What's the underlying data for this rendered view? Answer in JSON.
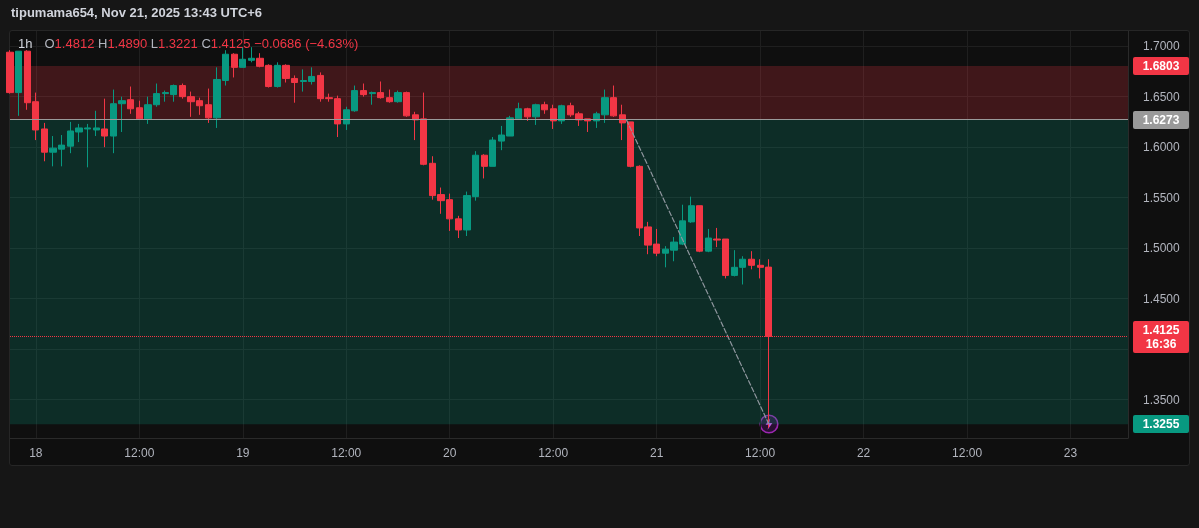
{
  "chart_data": {
    "type": "candlestick",
    "title": "1h",
    "subtitle": "O1.4812 H1.4890 L1.3221 C1.4125 −0.0686 (−4.63%)",
    "annotations": [
      "tipumama654, Nov 21, 2025 13:43 UTC+6"
    ],
    "series": [
      {
        "x": [
          "2025-11-17T21:00",
          "2025-11-17T22:00",
          "2025-11-17T23:00",
          "2025-11-18T00:00",
          "2025-11-18T01:00",
          "2025-11-18T02:00",
          "2025-11-18T03:00",
          "2025-11-18T04:00",
          "2025-11-18T05:00",
          "2025-11-18T06:00",
          "2025-11-18T07:00",
          "2025-11-18T08:00",
          "2025-11-18T09:00",
          "2025-11-18T10:00",
          "2025-11-18T11:00",
          "2025-11-18T12:00",
          "2025-11-18T13:00",
          "2025-11-18T14:00",
          "2025-11-18T15:00",
          "2025-11-18T16:00",
          "2025-11-18T17:00",
          "2025-11-18T18:00",
          "2025-11-18T19:00",
          "2025-11-18T20:00",
          "2025-11-18T21:00",
          "2025-11-18T22:00",
          "2025-11-18T23:00",
          "2025-11-19T00:00",
          "2025-11-19T01:00",
          "2025-11-19T02:00",
          "2025-11-19T03:00",
          "2025-11-19T04:00",
          "2025-11-19T05:00",
          "2025-11-19T06:00",
          "2025-11-19T07:00",
          "2025-11-19T08:00",
          "2025-11-19T09:00",
          "2025-11-19T10:00",
          "2025-11-19T11:00",
          "2025-11-19T12:00",
          "2025-11-19T13:00",
          "2025-11-19T14:00",
          "2025-11-19T15:00",
          "2025-11-19T16:00",
          "2025-11-19T17:00",
          "2025-11-19T18:00",
          "2025-11-19T19:00",
          "2025-11-19T20:00",
          "2025-11-19T21:00",
          "2025-11-19T22:00",
          "2025-11-19T23:00",
          "2025-11-20T00:00",
          "2025-11-20T01:00",
          "2025-11-20T02:00",
          "2025-11-20T03:00",
          "2025-11-20T04:00",
          "2025-11-20T05:00",
          "2025-11-20T06:00",
          "2025-11-20T07:00",
          "2025-11-20T08:00",
          "2025-11-20T09:00",
          "2025-11-20T10:00",
          "2025-11-20T11:00",
          "2025-11-20T12:00",
          "2025-11-20T13:00",
          "2025-11-20T14:00",
          "2025-11-20T15:00",
          "2025-11-20T16:00",
          "2025-11-20T17:00",
          "2025-11-20T18:00",
          "2025-11-20T19:00",
          "2025-11-20T20:00",
          "2025-11-20T21:00",
          "2025-11-20T22:00",
          "2025-11-20T23:00",
          "2025-11-21T00:00",
          "2025-11-21T01:00",
          "2025-11-21T02:00",
          "2025-11-21T03:00",
          "2025-11-21T04:00",
          "2025-11-21T05:00",
          "2025-11-21T06:00",
          "2025-11-21T07:00",
          "2025-11-21T08:00",
          "2025-11-21T09:00",
          "2025-11-21T10:00",
          "2025-11-21T11:00",
          "2025-11-21T12:00",
          "2025-11-21T13:00"
        ],
        "ohlc": [
          [
            1.694,
            1.696,
            1.653,
            1.654
          ],
          [
            1.654,
            1.695,
            1.631,
            1.695
          ],
          [
            1.695,
            1.696,
            1.637,
            1.644
          ],
          [
            1.645,
            1.654,
            1.607,
            1.617
          ],
          [
            1.618,
            1.624,
            1.586,
            1.595
          ],
          [
            1.595,
            1.611,
            1.581,
            1.599
          ],
          [
            1.598,
            1.612,
            1.581,
            1.602
          ],
          [
            1.601,
            1.625,
            1.594,
            1.616
          ],
          [
            1.615,
            1.623,
            1.605,
            1.619
          ],
          [
            1.618,
            1.623,
            1.58,
            1.619
          ],
          [
            1.617,
            1.636,
            1.611,
            1.619
          ],
          [
            1.618,
            1.648,
            1.6,
            1.611
          ],
          [
            1.611,
            1.657,
            1.594,
            1.643
          ],
          [
            1.643,
            1.65,
            1.615,
            1.646
          ],
          [
            1.647,
            1.66,
            1.633,
            1.638
          ],
          [
            1.639,
            1.646,
            1.627,
            1.628
          ],
          [
            1.628,
            1.65,
            1.623,
            1.642
          ],
          [
            1.642,
            1.663,
            1.64,
            1.653
          ],
          [
            1.653,
            1.656,
            1.645,
            1.654
          ],
          [
            1.652,
            1.662,
            1.645,
            1.661
          ],
          [
            1.661,
            1.663,
            1.648,
            1.65
          ],
          [
            1.65,
            1.655,
            1.63,
            1.645
          ],
          [
            1.646,
            1.649,
            1.632,
            1.641
          ],
          [
            1.642,
            1.658,
            1.624,
            1.629
          ],
          [
            1.629,
            1.679,
            1.619,
            1.667
          ],
          [
            1.666,
            1.696,
            1.661,
            1.692
          ],
          [
            1.692,
            1.693,
            1.669,
            1.679
          ],
          [
            1.679,
            1.699,
            1.679,
            1.687
          ],
          [
            1.686,
            1.699,
            1.684,
            1.688
          ],
          [
            1.688,
            1.693,
            1.679,
            1.68
          ],
          [
            1.681,
            1.682,
            1.659,
            1.66
          ],
          [
            1.66,
            1.684,
            1.659,
            1.681
          ],
          [
            1.681,
            1.682,
            1.664,
            1.668
          ],
          [
            1.668,
            1.671,
            1.644,
            1.664
          ],
          [
            1.665,
            1.677,
            1.655,
            1.666
          ],
          [
            1.665,
            1.679,
            1.662,
            1.67
          ],
          [
            1.671,
            1.674,
            1.645,
            1.648
          ],
          [
            1.649,
            1.653,
            1.645,
            1.648
          ],
          [
            1.648,
            1.651,
            1.61,
            1.623
          ],
          [
            1.623,
            1.64,
            1.617,
            1.637
          ],
          [
            1.636,
            1.661,
            1.635,
            1.656
          ],
          [
            1.656,
            1.663,
            1.65,
            1.652
          ],
          [
            1.653,
            1.655,
            1.642,
            1.654
          ],
          [
            1.654,
            1.665,
            1.648,
            1.649
          ],
          [
            1.649,
            1.657,
            1.644,
            1.645
          ],
          [
            1.645,
            1.656,
            1.644,
            1.654
          ],
          [
            1.654,
            1.655,
            1.63,
            1.631
          ],
          [
            1.632,
            1.635,
            1.607,
            1.627
          ],
          [
            1.628,
            1.654,
            1.582,
            1.583
          ],
          [
            1.584,
            1.591,
            1.548,
            1.552
          ],
          [
            1.553,
            1.56,
            1.534,
            1.547
          ],
          [
            1.548,
            1.554,
            1.517,
            1.529
          ],
          [
            1.529,
            1.532,
            1.51,
            1.518
          ],
          [
            1.518,
            1.556,
            1.512,
            1.552
          ],
          [
            1.551,
            1.596,
            1.547,
            1.592
          ],
          [
            1.592,
            1.593,
            1.569,
            1.581
          ],
          [
            1.581,
            1.61,
            1.581,
            1.607
          ],
          [
            1.606,
            1.621,
            1.597,
            1.612
          ],
          [
            1.611,
            1.631,
            1.611,
            1.629
          ],
          [
            1.628,
            1.644,
            1.627,
            1.638
          ],
          [
            1.638,
            1.639,
            1.626,
            1.63
          ],
          [
            1.63,
            1.643,
            1.622,
            1.642
          ],
          [
            1.642,
            1.645,
            1.633,
            1.637
          ],
          [
            1.638,
            1.642,
            1.618,
            1.626
          ],
          [
            1.626,
            1.642,
            1.623,
            1.641
          ],
          [
            1.641,
            1.644,
            1.63,
            1.632
          ],
          [
            1.633,
            1.635,
            1.621,
            1.627
          ],
          [
            1.628,
            1.628,
            1.615,
            1.626
          ],
          [
            1.626,
            1.635,
            1.619,
            1.633
          ],
          [
            1.632,
            1.657,
            1.624,
            1.649
          ],
          [
            1.649,
            1.661,
            1.63,
            1.631
          ],
          [
            1.632,
            1.642,
            1.607,
            1.624
          ],
          [
            1.625,
            1.625,
            1.58,
            1.581
          ],
          [
            1.581,
            1.582,
            1.512,
            1.52
          ],
          [
            1.521,
            1.526,
            1.494,
            1.503
          ],
          [
            1.504,
            1.519,
            1.492,
            1.495
          ],
          [
            1.495,
            1.502,
            1.481,
            1.499
          ],
          [
            1.498,
            1.511,
            1.487,
            1.506
          ],
          [
            1.504,
            1.543,
            1.503,
            1.527
          ],
          [
            1.526,
            1.551,
            1.525,
            1.542
          ],
          [
            1.542,
            1.542,
            1.496,
            1.497
          ],
          [
            1.497,
            1.519,
            1.496,
            1.51
          ],
          [
            1.509,
            1.52,
            1.501,
            1.508
          ],
          [
            1.509,
            1.509,
            1.47,
            1.473
          ],
          [
            1.473,
            1.498,
            1.472,
            1.481
          ],
          [
            1.481,
            1.492,
            1.464,
            1.489
          ],
          [
            1.489,
            1.497,
            1.479,
            1.483
          ],
          [
            1.483,
            1.489,
            1.47,
            1.481
          ],
          [
            1.4812,
            1.489,
            1.3221,
            1.4125
          ]
        ],
        "colors": [
          "#f23645",
          "#089981",
          "#f23645",
          "#f23645",
          "#f23645",
          "#089981",
          "#089981",
          "#089981",
          "#089981",
          "#089981",
          "#089981",
          "#f23645",
          "#089981",
          "#089981",
          "#f23645",
          "#f23645",
          "#089981",
          "#089981",
          "#089981",
          "#089981",
          "#f23645",
          "#f23645",
          "#f23645",
          "#f23645",
          "#089981",
          "#089981",
          "#f23645",
          "#089981",
          "#089981",
          "#f23645",
          "#f23645",
          "#089981",
          "#f23645",
          "#f23645",
          "#089981",
          "#089981",
          "#f23645",
          "#f23645",
          "#f23645",
          "#089981",
          "#089981",
          "#f23645",
          "#089981",
          "#f23645",
          "#f23645",
          "#089981",
          "#f23645",
          "#f23645",
          "#f23645",
          "#f23645",
          "#f23645",
          "#f23645",
          "#f23645",
          "#089981",
          "#089981",
          "#f23645",
          "#089981",
          "#089981",
          "#089981",
          "#089981",
          "#f23645",
          "#089981",
          "#f23645",
          "#f23645",
          "#089981",
          "#f23645",
          "#f23645",
          "#f23645",
          "#089981",
          "#089981",
          "#f23645",
          "#f23645",
          "#f23645",
          "#f23645",
          "#f23645",
          "#f23645",
          "#089981",
          "#089981",
          "#089981",
          "#089981",
          "#f23645",
          "#089981",
          "#f23645",
          "#f23645",
          "#089981",
          "#089981",
          "#f23645",
          "#f23645",
          "#f23645"
        ]
      },
      {
        "type": "line",
        "x": [
          "2025-11-20T20:30",
          "2025-11-21T13:00"
        ],
        "values": [
          1.627,
          1.326
        ],
        "color": "#8f969e",
        "line_style": "dashed",
        "marker": "none"
      }
    ],
    "xlim": [
      "2025-11-17T21:00",
      "2025-11-23T06:40"
    ],
    "xticks": [
      {
        "value": "2025-11-18",
        "label": "18"
      },
      {
        "value": "2025-11-18T12:00",
        "label": "12:00"
      },
      {
        "value": "2025-11-19",
        "label": "19"
      },
      {
        "value": "2025-11-19T12:00",
        "label": "12:00"
      },
      {
        "value": "2025-11-20",
        "label": "20"
      },
      {
        "value": "2025-11-20T12:00",
        "label": "12:00"
      },
      {
        "value": "2025-11-21",
        "label": "21"
      },
      {
        "value": "2025-11-21T12:00",
        "label": "12:00"
      },
      {
        "value": "2025-11-22",
        "label": "22"
      },
      {
        "value": "2025-11-22T12:00",
        "label": "12:00"
      },
      {
        "value": "2025-11-23",
        "label": "23"
      }
    ],
    "ylim": [
      1.312,
      1.715
    ],
    "yticks": [
      {
        "value": 1.35,
        "label": "1.3500"
      },
      {
        "value": 1.4,
        "label": null
      },
      {
        "value": 1.45,
        "label": "1.4500"
      },
      {
        "value": 1.5,
        "label": "1.5000"
      },
      {
        "value": 1.55,
        "label": "1.5500"
      },
      {
        "value": 1.6,
        "label": "1.6000"
      },
      {
        "value": 1.65,
        "label": "1.6500"
      },
      {
        "value": 1.7,
        "label": "1.7000"
      }
    ],
    "grid": true,
    "bands": [
      {
        "axis": "y",
        "from": 1.6273,
        "to": 1.6803,
        "label": "1.6803",
        "color": "#f23645"
      },
      {
        "axis": "y",
        "from": 1.3255,
        "to": 1.6273,
        "label": "1.3255",
        "color": "#089981"
      }
    ],
    "ref_lines": [
      {
        "axis": "y",
        "value": 1.6273,
        "label": "1.6273",
        "color": "#9a9a9a"
      },
      {
        "axis": "y",
        "value": 1.4125,
        "label": "1.4125\n16:36",
        "color": "#f23645",
        "line_style": "dotted"
      }
    ]
  }
}
